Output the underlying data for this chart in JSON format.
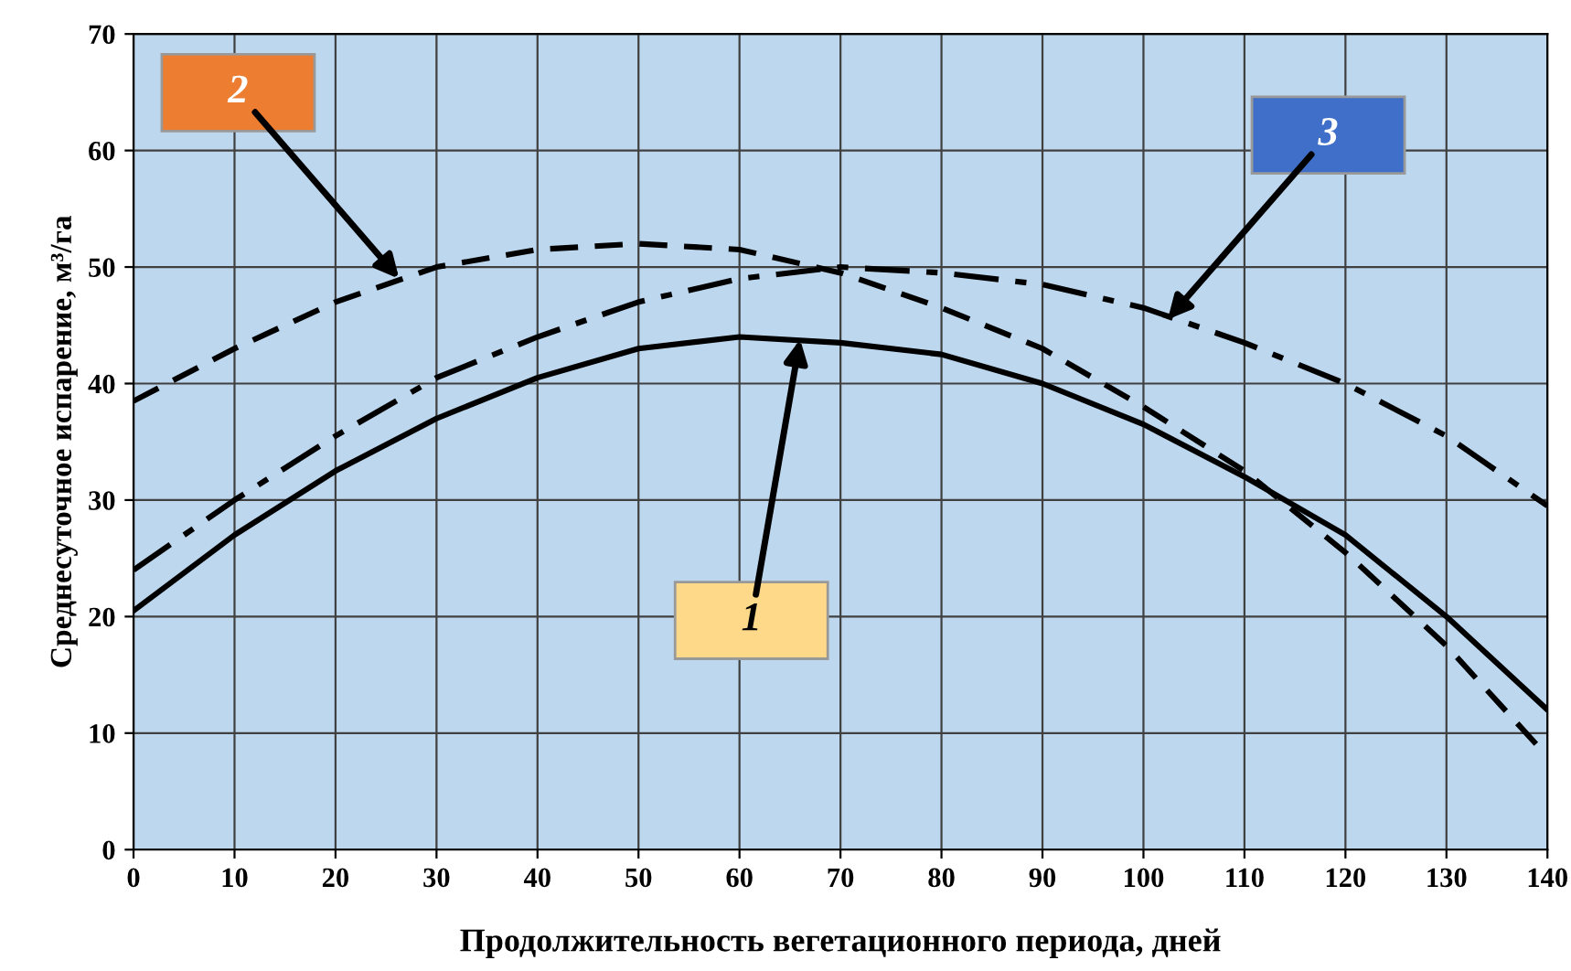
{
  "chart_data": {
    "type": "line",
    "xlabel": "Продолжительность вегетационного периода, дней",
    "ylabel": "Среднесуточное испарение, м³/га",
    "xlim": [
      0,
      140
    ],
    "ylim": [
      0,
      70
    ],
    "xticks": [
      0,
      10,
      20,
      30,
      40,
      50,
      60,
      70,
      80,
      90,
      100,
      110,
      120,
      130,
      140
    ],
    "yticks": [
      0,
      10,
      20,
      30,
      40,
      50,
      60,
      70
    ],
    "grid": true,
    "marker": "none",
    "x": [
      0,
      10,
      20,
      30,
      40,
      50,
      60,
      70,
      80,
      90,
      100,
      110,
      120,
      130,
      140
    ],
    "series": [
      {
        "color": "#000000",
        "line_style": "solid",
        "values": [
          20.5,
          27,
          32.5,
          37,
          40.5,
          43,
          44,
          43.5,
          42.5,
          40,
          36.5,
          32,
          27,
          20,
          12
        ]
      },
      {
        "color": "#000000",
        "line_style": "dashed",
        "values": [
          38.5,
          43,
          47,
          50,
          51.5,
          52,
          51.5,
          49.5,
          46.5,
          43,
          38,
          32.5,
          25.5,
          17.5,
          8
        ]
      },
      {
        "color": "#000000",
        "line_style": "dashdot",
        "values": [
          24,
          30,
          35.5,
          40.5,
          44,
          47,
          49,
          50,
          49.5,
          48.5,
          46.5,
          43.5,
          40,
          35.5,
          29.5
        ]
      }
    ],
    "annotations": [
      {
        "text": "1",
        "x": 66,
        "y": 43.8
      },
      {
        "text": "2",
        "x": 26.3,
        "y": 49
      },
      {
        "text": "3",
        "x": 102.4,
        "y": 45.5
      }
    ]
  }
}
